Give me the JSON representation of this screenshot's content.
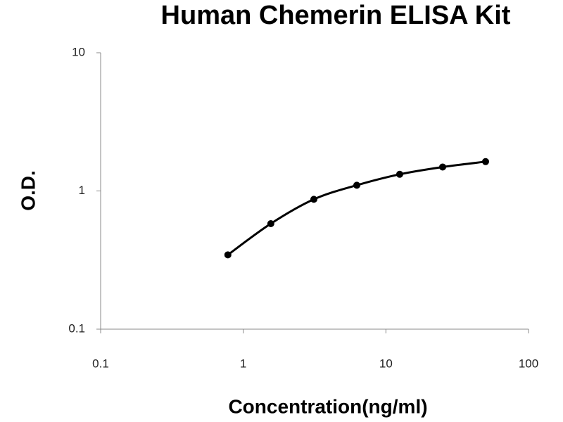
{
  "chart_data": {
    "type": "scatter",
    "title": "Human Chemerin ELISA Kit",
    "x_label": "Concentration(ng/ml)",
    "y_label": "O.D.",
    "x_scale": "log",
    "y_scale": "log",
    "xlim": [
      0.1,
      100
    ],
    "ylim": [
      0.1,
      10
    ],
    "xticks": [
      0.1,
      1,
      10,
      100
    ],
    "yticks": [
      0.1,
      1,
      10
    ],
    "fit_curve": true,
    "series": [
      {
        "color": "#000000",
        "x": [
          0.78,
          1.56,
          3.125,
          6.25,
          12.5,
          25,
          50
        ],
        "values": [
          0.345,
          0.58,
          0.87,
          1.1,
          1.32,
          1.49,
          1.63
        ]
      }
    ]
  }
}
